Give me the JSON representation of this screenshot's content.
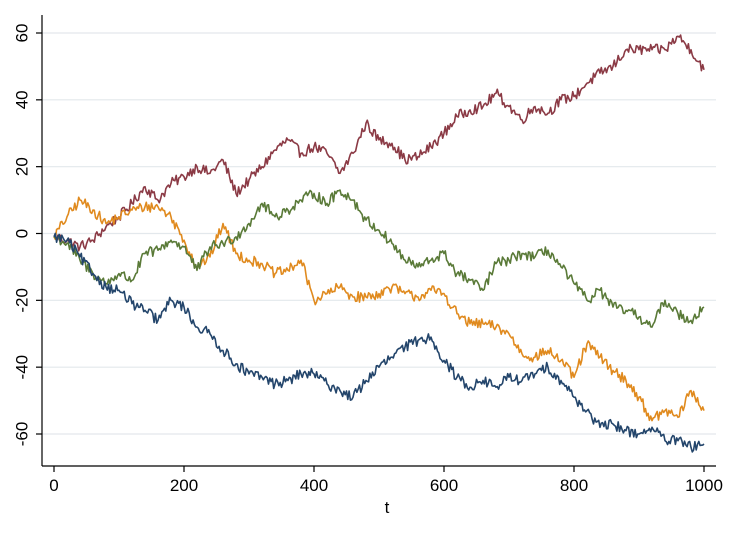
{
  "chart_data": {
    "type": "line",
    "title": "",
    "xlabel": "t",
    "ylabel": "",
    "xlim": [
      0,
      1000
    ],
    "ylim": [
      -67,
      70
    ],
    "x_ticks": [
      0,
      200,
      400,
      600,
      800,
      1000
    ],
    "y_ticks": [
      -60,
      -40,
      -20,
      0,
      20,
      40,
      60
    ],
    "x_tick_labels": [
      "0",
      "200",
      "400",
      "600",
      "800",
      "1000"
    ],
    "y_tick_labels": [
      "-60",
      "-40",
      "-20",
      "0",
      "20",
      "40",
      "60"
    ],
    "grid": "horizontal",
    "legend": "none",
    "series": [
      {
        "color": "#8B3A45",
        "x": [
          0,
          20,
          40,
          60,
          80,
          100,
          120,
          140,
          160,
          180,
          200,
          220,
          240,
          260,
          280,
          300,
          320,
          340,
          360,
          380,
          400,
          420,
          440,
          460,
          480,
          500,
          520,
          540,
          560,
          580,
          600,
          620,
          640,
          660,
          680,
          700,
          720,
          740,
          760,
          780,
          800,
          820,
          840,
          860,
          880,
          900,
          920,
          940,
          960,
          980,
          1000
        ],
        "y": [
          -1,
          -2,
          -4,
          -2,
          2,
          5,
          9,
          14,
          10,
          15,
          17,
          20,
          18,
          22,
          12,
          16,
          20,
          25,
          28,
          24,
          26,
          24,
          18,
          24,
          33,
          28,
          27,
          22,
          23,
          26,
          30,
          35,
          37,
          38,
          42,
          38,
          34,
          38,
          36,
          40,
          41,
          45,
          48,
          50,
          55,
          55,
          55,
          55,
          59,
          55,
          49
        ]
      },
      {
        "color": "#E08A1E",
        "x": [
          0,
          20,
          40,
          60,
          80,
          100,
          120,
          140,
          160,
          180,
          200,
          220,
          240,
          260,
          280,
          300,
          320,
          340,
          360,
          380,
          400,
          420,
          440,
          460,
          480,
          500,
          520,
          540,
          560,
          580,
          600,
          620,
          640,
          660,
          680,
          700,
          720,
          740,
          760,
          780,
          800,
          820,
          840,
          860,
          880,
          900,
          920,
          940,
          960,
          980,
          1000
        ],
        "y": [
          -1,
          5,
          10,
          7,
          3,
          5,
          7,
          8,
          8,
          5,
          -2,
          -10,
          -7,
          3,
          -6,
          -8,
          -9,
          -12,
          -11,
          -8,
          -20,
          -18,
          -16,
          -19,
          -19,
          -18,
          -16,
          -18,
          -19,
          -17,
          -18,
          -24,
          -27,
          -27,
          -28,
          -30,
          -36,
          -37,
          -35,
          -38,
          -43,
          -33,
          -37,
          -41,
          -44,
          -49,
          -56,
          -53,
          -55,
          -47,
          -53
        ]
      },
      {
        "color": "#5A7A38",
        "x": [
          0,
          20,
          40,
          60,
          80,
          100,
          120,
          140,
          160,
          180,
          200,
          220,
          240,
          260,
          280,
          300,
          320,
          340,
          360,
          380,
          400,
          420,
          440,
          460,
          480,
          500,
          520,
          540,
          560,
          580,
          600,
          620,
          640,
          660,
          680,
          700,
          720,
          740,
          760,
          780,
          800,
          820,
          840,
          860,
          880,
          900,
          920,
          940,
          960,
          980,
          1000
        ],
        "y": [
          -1,
          -3,
          -8,
          -12,
          -15,
          -12,
          -14,
          -6,
          -5,
          -2,
          -4,
          -11,
          -4,
          -3,
          -1,
          3,
          9,
          5,
          7,
          10,
          12,
          9,
          13,
          10,
          4,
          1,
          -3,
          -8,
          -10,
          -8,
          -6,
          -12,
          -14,
          -17,
          -9,
          -8,
          -6,
          -7,
          -5,
          -10,
          -15,
          -20,
          -17,
          -22,
          -23,
          -25,
          -28,
          -20,
          -24,
          -26,
          -22
        ]
      },
      {
        "color": "#23456B",
        "x": [
          0,
          20,
          40,
          60,
          80,
          100,
          120,
          140,
          160,
          180,
          200,
          220,
          240,
          260,
          280,
          300,
          320,
          340,
          360,
          380,
          400,
          420,
          440,
          460,
          480,
          500,
          520,
          540,
          560,
          580,
          600,
          620,
          640,
          660,
          680,
          700,
          720,
          740,
          760,
          780,
          800,
          820,
          840,
          860,
          880,
          900,
          920,
          940,
          960,
          980,
          1000
        ],
        "y": [
          -1,
          -2,
          -7,
          -12,
          -16,
          -17,
          -21,
          -23,
          -26,
          -20,
          -22,
          -28,
          -30,
          -35,
          -39,
          -42,
          -43,
          -45,
          -44,
          -42,
          -42,
          -45,
          -47,
          -49,
          -44,
          -40,
          -37,
          -34,
          -32,
          -31,
          -38,
          -43,
          -46,
          -44,
          -46,
          -43,
          -44,
          -42,
          -40,
          -44,
          -49,
          -53,
          -58,
          -57,
          -59,
          -60,
          -58,
          -62,
          -62,
          -64,
          -63
        ]
      }
    ]
  }
}
